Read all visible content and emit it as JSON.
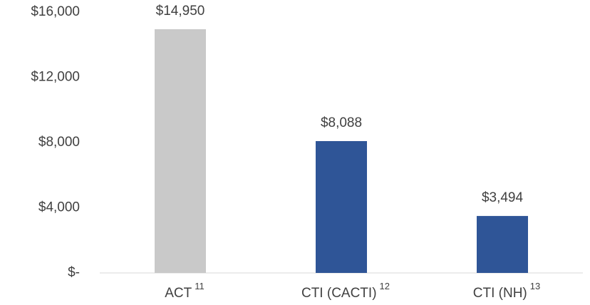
{
  "chart_data": {
    "type": "bar",
    "categories": [
      "ACT",
      "CTI (CACTI)",
      "CTI (NH)"
    ],
    "footnotes": [
      "11",
      "12",
      "13"
    ],
    "values": [
      14950,
      8088,
      3494
    ],
    "value_labels": [
      "$14,950",
      "$8,088",
      "$3,494"
    ],
    "colors": [
      "#c9c9c9",
      "#2f5597",
      "#2f5597"
    ],
    "ylim": [
      0,
      16000
    ],
    "yticks": [
      {
        "value": 0,
        "label": "$-"
      },
      {
        "value": 4000,
        "label": "$4,000"
      },
      {
        "value": 8000,
        "label": "$8,000"
      },
      {
        "value": 12000,
        "label": "$12,000"
      },
      {
        "value": 16000,
        "label": "$16,000"
      }
    ],
    "grid": false
  }
}
